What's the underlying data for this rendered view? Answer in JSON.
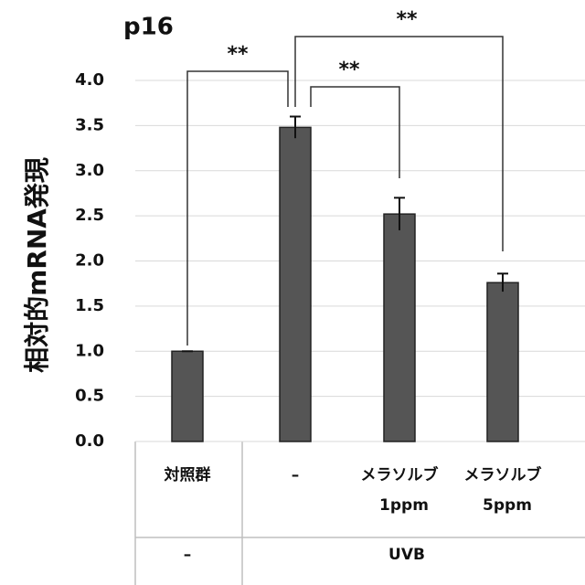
{
  "chart_data": {
    "type": "bar",
    "title": "p16",
    "y_label": "相対的mRNA発現",
    "categories": [
      [
        "対照群"
      ],
      [
        "–"
      ],
      [
        "メラソルブ",
        "1ppm"
      ],
      [
        "メラソルブ",
        "5ppm"
      ]
    ],
    "group_labels": [
      "–",
      "UVB"
    ],
    "values": [
      1.0,
      3.48,
      2.52,
      1.76
    ],
    "errors": [
      0,
      0.12,
      0.18,
      0.1
    ],
    "color": "#555555",
    "annotations": [
      "**",
      "**",
      "**"
    ],
    "ylim": [
      0,
      4.0
    ],
    "yticks": [
      {
        "value": 0,
        "label": "0.0"
      },
      {
        "value": 0.5,
        "label": "0.5"
      },
      {
        "value": 1,
        "label": "1.0"
      },
      {
        "value": 1.5,
        "label": "1.5"
      },
      {
        "value": 2,
        "label": "2.0"
      },
      {
        "value": 2.5,
        "label": "2.5"
      },
      {
        "value": 3,
        "label": "3.0"
      },
      {
        "value": 3.5,
        "label": "3.5"
      },
      {
        "value": 4,
        "label": "4.0"
      }
    ],
    "grid": true
  }
}
